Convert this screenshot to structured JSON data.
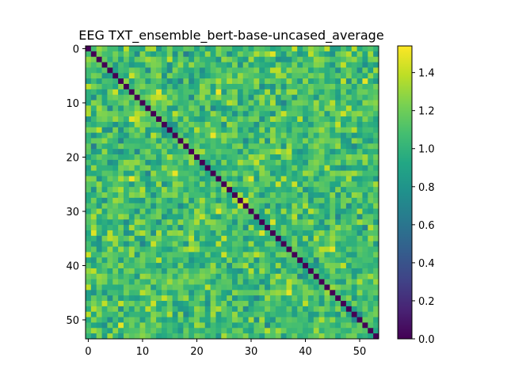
{
  "chart_data": {
    "type": "heatmap",
    "title": "EEG TXT_ensemble_bert-base-uncased_average",
    "xlabel": "",
    "ylabel": "",
    "n": 54,
    "x_ticks": [
      0,
      10,
      20,
      30,
      40,
      50
    ],
    "y_ticks": [
      0,
      10,
      20,
      30,
      40,
      50
    ],
    "colorbar": {
      "vmin": 0.0,
      "vmax": 1.54,
      "ticks": [
        0.0,
        0.2,
        0.4,
        0.6,
        0.8,
        1.0,
        1.2,
        1.4
      ],
      "colormap": "viridis"
    },
    "diagonal_value": 0.0,
    "values_note_seed": 7,
    "grid": false,
    "legend": "colorbar-right"
  }
}
